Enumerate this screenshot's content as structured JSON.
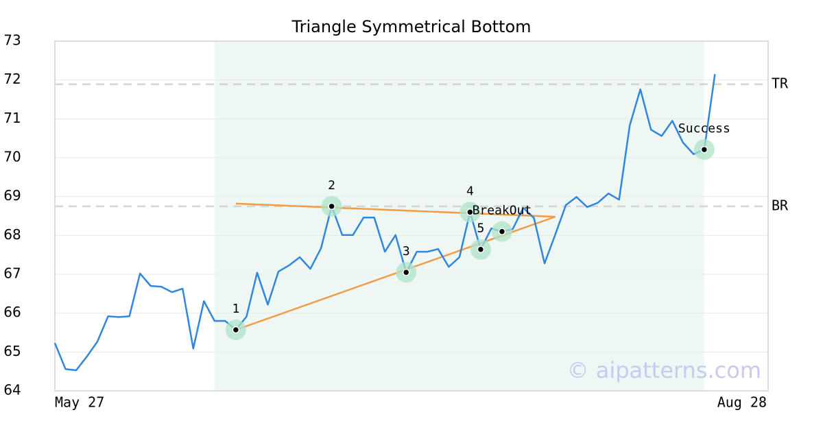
{
  "chart_data": {
    "type": "line",
    "title": "Triangle Symmetrical Bottom",
    "watermark": "© aipatterns.com",
    "x": [
      0,
      1,
      2,
      3,
      4,
      5,
      6,
      7,
      8,
      9,
      10,
      11,
      12,
      13,
      14,
      15,
      16,
      17,
      18,
      19,
      20,
      21,
      22,
      23,
      24,
      25,
      26,
      27,
      28,
      29,
      30,
      31,
      32,
      33,
      34,
      35,
      36,
      37,
      38,
      39,
      40,
      41,
      42,
      43,
      44,
      45,
      46,
      47,
      48,
      49,
      50,
      51,
      52,
      53,
      54,
      55,
      56,
      57,
      58,
      59,
      60,
      61,
      62
    ],
    "series": [
      {
        "color": "#2e86de",
        "values": [
          65.23,
          64.56,
          64.53,
          64.88,
          65.27,
          65.92,
          65.9,
          65.92,
          67.02,
          66.7,
          66.68,
          66.54,
          66.63,
          65.09,
          66.31,
          65.8,
          65.8,
          65.57,
          65.91,
          67.04,
          66.22,
          67.07,
          67.23,
          67.44,
          67.14,
          67.67,
          68.75,
          68.01,
          68.01,
          68.46,
          68.46,
          67.58,
          68.01,
          67.05,
          67.58,
          67.58,
          67.65,
          67.19,
          67.44,
          68.6,
          67.64,
          68.18,
          68.1,
          68.16,
          68.71,
          68.45,
          67.28,
          68.02,
          68.78,
          68.99,
          68.73,
          68.84,
          69.08,
          68.92,
          70.83,
          71.76,
          70.72,
          70.56,
          70.95,
          70.39,
          70.09,
          70.21,
          72.15
        ]
      }
    ],
    "xlim": [
      0,
      67
    ],
    "xticks": [
      {
        "value": 0,
        "label": "May 27"
      },
      {
        "value": 67,
        "label": "Aug 28"
      }
    ],
    "ylim": [
      64,
      73
    ],
    "yticks": [
      64,
      65,
      66,
      67,
      68,
      69,
      70,
      71,
      72,
      73
    ],
    "grid": true,
    "pattern_range": [
      15,
      61
    ],
    "pattern_color": "#eef7f3",
    "trend_color": "#f39c45",
    "trend_lines": [
      {
        "x": [
          17,
          47
        ],
        "y": [
          68.82,
          68.48
        ]
      },
      {
        "x": [
          17,
          47
        ],
        "y": [
          65.57,
          68.48
        ]
      }
    ],
    "levels": [
      {
        "label": "TR",
        "value": 71.89
      },
      {
        "label": "BR",
        "value": 68.75
      }
    ],
    "points": [
      {
        "label": "1",
        "x": 17,
        "y": 65.57
      },
      {
        "label": "2",
        "x": 26,
        "y": 68.75
      },
      {
        "label": "3",
        "x": 33,
        "y": 67.05
      },
      {
        "label": "4",
        "x": 39,
        "y": 68.6
      },
      {
        "label": "5",
        "x": 40,
        "y": 67.64
      },
      {
        "label": "BreakOut",
        "x": 42,
        "y": 68.1
      },
      {
        "label": "Success",
        "x": 61,
        "y": 70.21
      }
    ]
  }
}
